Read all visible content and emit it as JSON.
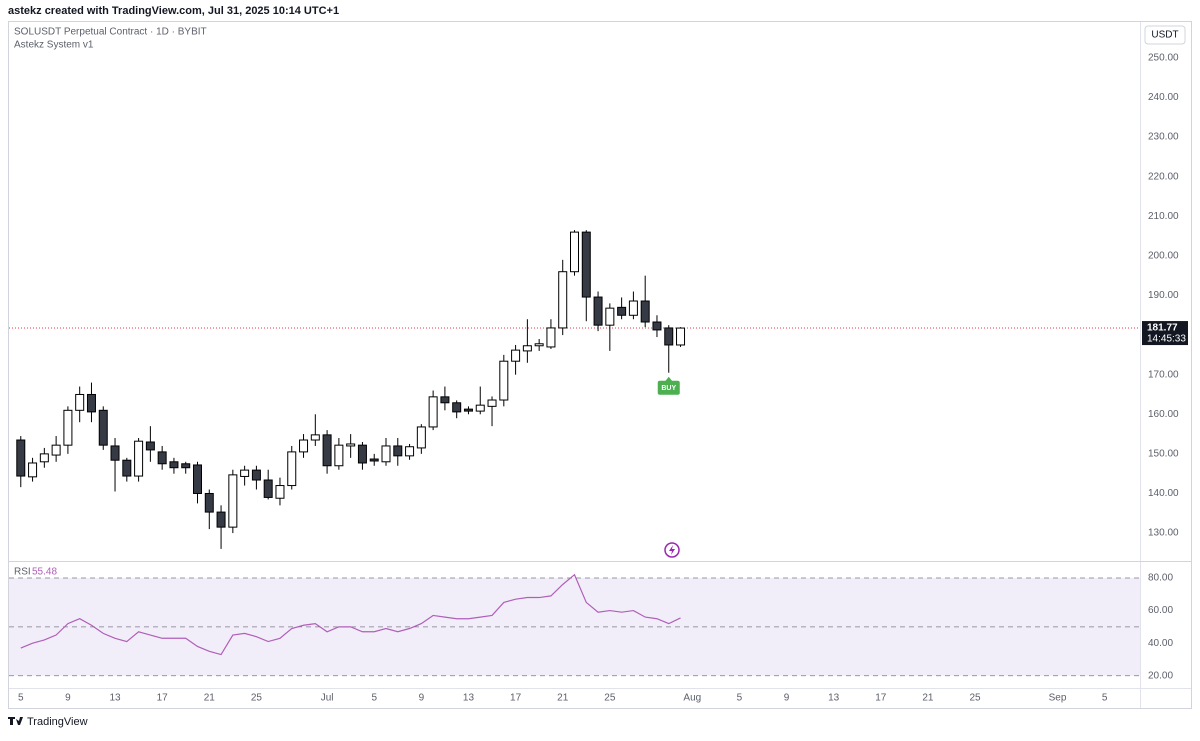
{
  "page": {
    "header": "astekz created with TradingView.com, Jul 31, 2025 10:14 UTC+1",
    "footer": "TradingView"
  },
  "chart_data": [
    {
      "type": "candlestick",
      "title": "SOLUSDT Perpetual Contract · 1D · BYBIT",
      "subtitle": "Astekz System v1",
      "currency": "USDT",
      "countdown": "14:45:33",
      "x": [
        "2025-06-05",
        "2025-06-06",
        "2025-06-07",
        "2025-06-08",
        "2025-06-09",
        "2025-06-10",
        "2025-06-11",
        "2025-06-12",
        "2025-06-13",
        "2025-06-14",
        "2025-06-15",
        "2025-06-16",
        "2025-06-17",
        "2025-06-18",
        "2025-06-19",
        "2025-06-20",
        "2025-06-21",
        "2025-06-22",
        "2025-06-23",
        "2025-06-24",
        "2025-06-25",
        "2025-06-26",
        "2025-06-27",
        "2025-06-28",
        "2025-06-29",
        "2025-06-30",
        "2025-07-01",
        "2025-07-02",
        "2025-07-03",
        "2025-07-04",
        "2025-07-05",
        "2025-07-06",
        "2025-07-07",
        "2025-07-08",
        "2025-07-09",
        "2025-07-10",
        "2025-07-11",
        "2025-07-12",
        "2025-07-13",
        "2025-07-14",
        "2025-07-15",
        "2025-07-16",
        "2025-07-17",
        "2025-07-18",
        "2025-07-19",
        "2025-07-20",
        "2025-07-21",
        "2025-07-22",
        "2025-07-23",
        "2025-07-24",
        "2025-07-25",
        "2025-07-26",
        "2025-07-27",
        "2025-07-28",
        "2025-07-29",
        "2025-07-30",
        "2025-07-31"
      ],
      "open": [
        153.5,
        144.2,
        148,
        149.7,
        152.2,
        161,
        165,
        161,
        152,
        148.4,
        144.4,
        153,
        150.5,
        148,
        147.5,
        147.2,
        140,
        135.3,
        131.5,
        144.3,
        145.9,
        143.4,
        138.8,
        142,
        150.5,
        153.5,
        154.8,
        147,
        152,
        152.2,
        148.7,
        148,
        152,
        149.5,
        151.5,
        156.8,
        164.4,
        162.9,
        161.3,
        160.8,
        162,
        163.6,
        173.4,
        176,
        177.3,
        177,
        181.8,
        196,
        206,
        189.6,
        182.5,
        187,
        185,
        188.6,
        183.3,
        181.8,
        177.5
      ],
      "high": [
        154.5,
        149,
        151.5,
        154.5,
        162,
        167,
        168,
        162,
        154,
        149,
        154,
        157,
        152,
        149,
        148,
        148,
        141,
        137,
        146,
        147,
        147,
        146,
        144,
        152,
        155,
        160,
        156,
        154,
        155,
        153,
        150,
        154,
        154,
        152.5,
        157.5,
        166,
        167,
        163.5,
        162,
        167,
        164.5,
        175,
        177.5,
        184,
        179,
        184,
        199,
        206.5,
        206.5,
        191,
        188,
        189.5,
        191,
        195,
        185,
        182.5,
        182
      ],
      "low": [
        141.6,
        143,
        146.5,
        148,
        150,
        158,
        158,
        151,
        140.5,
        143,
        143,
        148,
        146,
        145,
        145,
        137.5,
        131,
        126,
        130,
        142,
        141,
        138.5,
        137,
        141,
        149,
        152,
        145,
        146,
        149,
        146,
        147,
        147,
        147,
        148.5,
        150,
        156,
        161,
        159,
        160,
        160,
        157,
        162,
        170,
        173,
        176,
        176.5,
        180,
        195,
        183.5,
        181,
        176,
        184,
        184,
        182,
        179.5,
        170.5,
        177
      ],
      "close": [
        144.4,
        147.7,
        150,
        152.2,
        161,
        165,
        160.6,
        152.2,
        148.4,
        144.4,
        153.2,
        151,
        147.5,
        146.5,
        146.5,
        140,
        135.3,
        131.5,
        144.7,
        145.9,
        143.4,
        139,
        142,
        150.5,
        153.5,
        154.8,
        147,
        152.2,
        152.5,
        147.7,
        148.2,
        152,
        149.5,
        151.8,
        156.8,
        164.4,
        162.9,
        160.6,
        160.8,
        162.3,
        163.6,
        173.4,
        176.2,
        177.3,
        177.8,
        181.8,
        196,
        206,
        189.6,
        182.5,
        186.8,
        185,
        188.6,
        183.3,
        181.3,
        177.5,
        181.77
      ],
      "up_color": "#ffffff",
      "down_color": "#363a45",
      "border_color": "#000000",
      "price_line_color": "#f23645",
      "annotations": [
        {
          "text": "BUY",
          "x": "2025-07-30",
          "color": "#4caf50"
        }
      ],
      "xlim": [
        "2025-06-04",
        "2025-09-08"
      ],
      "xticks": [
        {
          "value": "2025-06-05",
          "label": "5"
        },
        {
          "value": "2025-06-09",
          "label": "9"
        },
        {
          "value": "2025-06-13",
          "label": "13"
        },
        {
          "value": "2025-06-17",
          "label": "17"
        },
        {
          "value": "2025-06-21",
          "label": "21"
        },
        {
          "value": "2025-06-25",
          "label": "25"
        },
        {
          "value": "2025-07-01",
          "label": "Jul"
        },
        {
          "value": "2025-07-05",
          "label": "5"
        },
        {
          "value": "2025-07-09",
          "label": "9"
        },
        {
          "value": "2025-07-13",
          "label": "13"
        },
        {
          "value": "2025-07-17",
          "label": "17"
        },
        {
          "value": "2025-07-21",
          "label": "21"
        },
        {
          "value": "2025-07-25",
          "label": "25"
        },
        {
          "value": "2025-08-01",
          "label": "Aug"
        },
        {
          "value": "2025-08-05",
          "label": "5"
        },
        {
          "value": "2025-08-09",
          "label": "9"
        },
        {
          "value": "2025-08-13",
          "label": "13"
        },
        {
          "value": "2025-08-17",
          "label": "17"
        },
        {
          "value": "2025-08-21",
          "label": "21"
        },
        {
          "value": "2025-08-25",
          "label": "25"
        },
        {
          "value": "2025-09-01",
          "label": "Sep"
        },
        {
          "value": "2025-09-05",
          "label": "5"
        }
      ],
      "ylim": [
        123.2,
        258.3
      ],
      "yticks": [
        {
          "value": 130,
          "label": "130.00"
        },
        {
          "value": 140,
          "label": "140.00"
        },
        {
          "value": 150,
          "label": "150.00"
        },
        {
          "value": 160,
          "label": "160.00"
        },
        {
          "value": 170,
          "label": "170.00"
        },
        {
          "value": 180,
          "label": "180.00"
        },
        {
          "value": 190,
          "label": "190.00"
        },
        {
          "value": 200,
          "label": "200.00"
        },
        {
          "value": 210,
          "label": "210.00"
        },
        {
          "value": 220,
          "label": "220.00"
        },
        {
          "value": 230,
          "label": "230.00"
        },
        {
          "value": 240,
          "label": "240.00"
        },
        {
          "value": 250,
          "label": "250.00"
        }
      ],
      "grid": false
    },
    {
      "type": "line",
      "x": [
        "2025-06-05",
        "2025-06-06",
        "2025-06-07",
        "2025-06-08",
        "2025-06-09",
        "2025-06-10",
        "2025-06-11",
        "2025-06-12",
        "2025-06-13",
        "2025-06-14",
        "2025-06-15",
        "2025-06-16",
        "2025-06-17",
        "2025-06-18",
        "2025-06-19",
        "2025-06-20",
        "2025-06-21",
        "2025-06-22",
        "2025-06-23",
        "2025-06-24",
        "2025-06-25",
        "2025-06-26",
        "2025-06-27",
        "2025-06-28",
        "2025-06-29",
        "2025-06-30",
        "2025-07-01",
        "2025-07-02",
        "2025-07-03",
        "2025-07-04",
        "2025-07-05",
        "2025-07-06",
        "2025-07-07",
        "2025-07-08",
        "2025-07-09",
        "2025-07-10",
        "2025-07-11",
        "2025-07-12",
        "2025-07-13",
        "2025-07-14",
        "2025-07-15",
        "2025-07-16",
        "2025-07-17",
        "2025-07-18",
        "2025-07-19",
        "2025-07-20",
        "2025-07-21",
        "2025-07-22",
        "2025-07-23",
        "2025-07-24",
        "2025-07-25",
        "2025-07-26",
        "2025-07-27",
        "2025-07-28",
        "2025-07-29",
        "2025-07-30",
        "2025-07-31"
      ],
      "series": [
        {
          "name": "RSI",
          "color": "#b05fb8",
          "values": [
            37,
            40,
            42,
            45,
            52,
            55,
            51,
            46,
            43,
            41,
            47,
            45,
            43,
            43,
            43,
            38,
            35,
            33,
            45,
            46,
            44,
            41,
            43,
            49,
            51,
            52,
            47,
            50,
            50,
            47,
            47,
            49,
            47,
            49,
            52,
            57,
            56,
            55,
            55,
            56,
            57,
            65,
            67,
            68,
            68,
            69,
            76,
            82,
            65,
            59,
            60,
            59,
            60,
            56,
            55,
            52,
            55.48
          ]
        }
      ],
      "band_levels": [
        20,
        50,
        80
      ],
      "band_color": "#7e57c2",
      "xlim": [
        "2025-06-04",
        "2025-09-08"
      ],
      "ylim": [
        12.5,
        89.8
      ],
      "yticks": [
        {
          "value": 20,
          "label": "20.00"
        },
        {
          "value": 40,
          "label": "40.00"
        },
        {
          "value": 60,
          "label": "60.00"
        },
        {
          "value": 80,
          "label": "80.00"
        }
      ],
      "grid": false
    }
  ]
}
